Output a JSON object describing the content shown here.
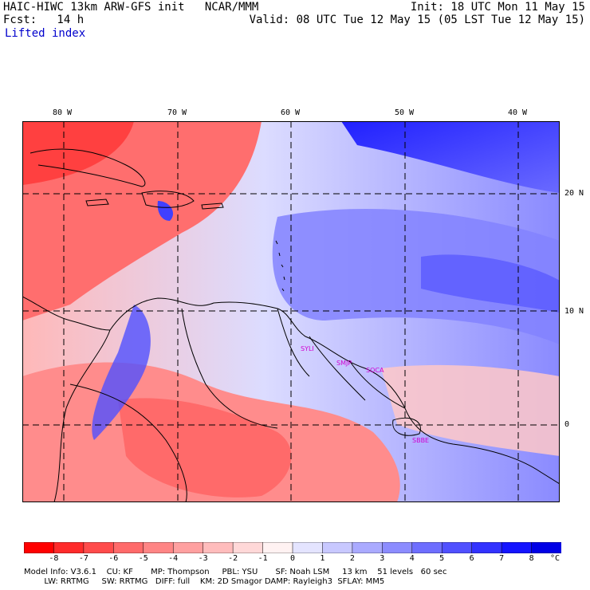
{
  "header": {
    "left_line1": "HAIC-HIWC 13km ARW-GFS init   NCAR/MMM",
    "left_line2": "Fcst:   14 h",
    "field": "Lifted index",
    "right_line1": "Init: 18 UTC Mon 11 May 15",
    "right_line2": "Valid: 08 UTC Tue 12 May 15 (05 LST Tue 12 May 15)"
  },
  "axes": {
    "lon_labels": [
      "80 W",
      "70 W",
      "60 W",
      "50 W",
      "40 W"
    ],
    "lat_labels": [
      "20 N",
      "10 N",
      "0"
    ]
  },
  "stations": [
    "SYLI",
    "SMJP",
    "SOCA",
    "SBBE"
  ],
  "colorbar": {
    "labels": [
      "-8",
      "-7",
      "-6",
      "-5",
      "-4",
      "-3",
      "-2",
      "-1",
      "0",
      "1",
      "2",
      "3",
      "4",
      "5",
      "6",
      "7",
      "8"
    ],
    "unit": "°C",
    "colors": [
      "#ff0000",
      "#ff2a2a",
      "#ff4b4b",
      "#ff6a6a",
      "#ff8585",
      "#ffa0a0",
      "#ffbcbc",
      "#ffd8d8",
      "#fff2f2",
      "#e4e4ff",
      "#c8c8ff",
      "#aaaaff",
      "#8c8cff",
      "#6e6eff",
      "#5050ff",
      "#3232ff",
      "#1414ff",
      "#0000e6"
    ]
  },
  "footer": {
    "line1": "Model Info: V3.6.1    CU: KF       MP: Thompson     PBL: YSU       SF: Noah LSM     13 km    51 levels   60 sec",
    "line2": "        LW: RRTMG     SW: RRTMG   DIFF: full    KM: 2D Smagor DAMP: Rayleigh3  SFLAY: MM5"
  }
}
